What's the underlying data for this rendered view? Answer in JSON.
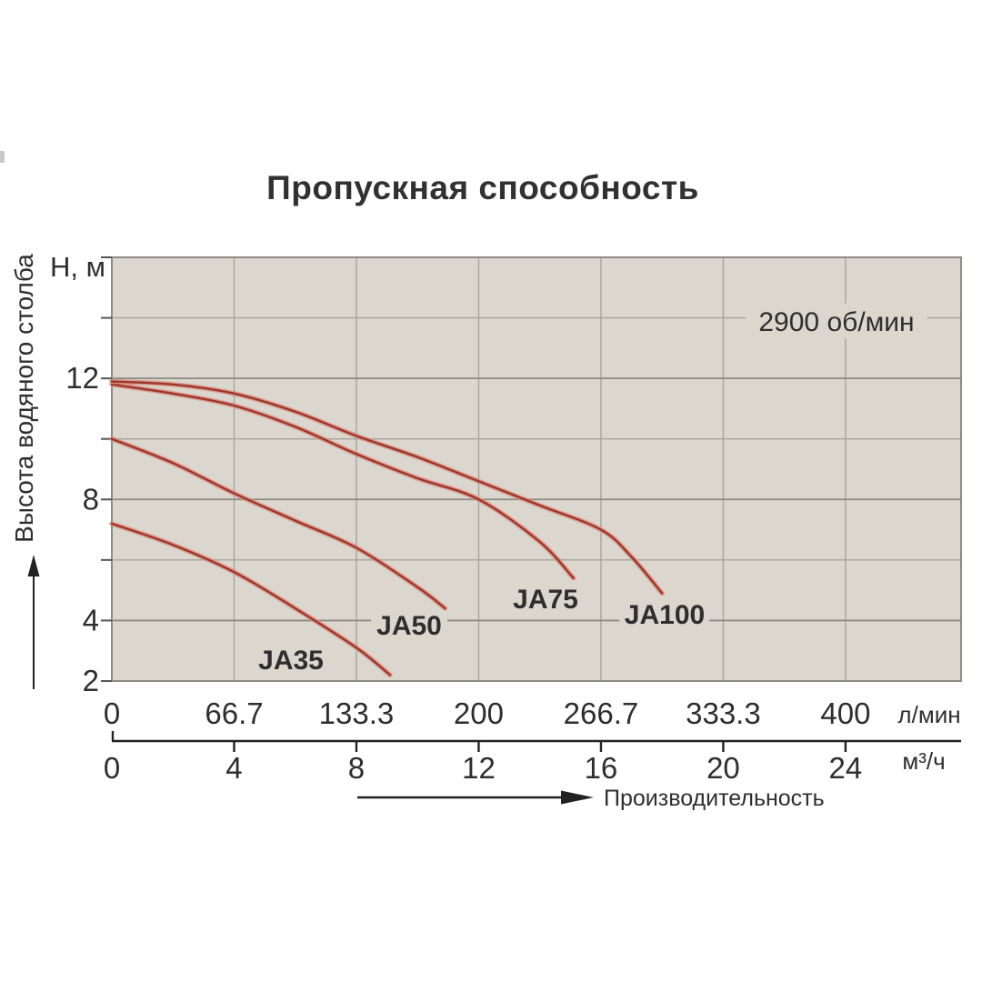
{
  "chart_data": {
    "type": "line",
    "title": "Пропускная способность",
    "annotation": "2900 об/мин",
    "x_title": "Производительность",
    "y_axis": {
      "label": "Н, м",
      "title": "Высота водяного столба",
      "range": [
        2,
        16
      ],
      "tick_labels": [
        "12",
        "8",
        "4",
        "2"
      ],
      "tick_values": [
        12,
        8,
        4,
        2
      ],
      "minor_tick_values": [
        2,
        4,
        6,
        8,
        10,
        12,
        14,
        16
      ]
    },
    "x_axes": [
      {
        "unit": "л/мин",
        "tick_labels": [
          "0",
          "66.7",
          "133.3",
          "200",
          "266.7",
          "333.3",
          "400"
        ]
      },
      {
        "unit": "м³/ч",
        "tick_labels": [
          "0",
          "4",
          "8",
          "12",
          "16",
          "20",
          "24"
        ]
      }
    ],
    "tick_positions_m3h": [
      0,
      4,
      8,
      12,
      16,
      20,
      24
    ],
    "x_range_m3h": [
      0,
      27.78
    ],
    "grid": {
      "v_m3h": [
        4,
        8,
        12,
        16,
        20,
        24
      ],
      "h_major": [
        4,
        8,
        12
      ],
      "h_minor": [
        6,
        10,
        14
      ]
    },
    "series": [
      {
        "name": "JA35",
        "points_m3h_H": [
          [
            0,
            7.2
          ],
          [
            2,
            6.5
          ],
          [
            4,
            5.6
          ],
          [
            6,
            4.4
          ],
          [
            8,
            3.1
          ],
          [
            9.1,
            2.2
          ]
        ]
      },
      {
        "name": "JA50",
        "points_m3h_H": [
          [
            0,
            10.0
          ],
          [
            2,
            9.2
          ],
          [
            4,
            8.2
          ],
          [
            6,
            7.3
          ],
          [
            8,
            6.4
          ],
          [
            10,
            5.1
          ],
          [
            10.9,
            4.4
          ]
        ]
      },
      {
        "name": "JA75",
        "points_m3h_H": [
          [
            0,
            11.8
          ],
          [
            2,
            11.5
          ],
          [
            4,
            11.1
          ],
          [
            6,
            10.4
          ],
          [
            8,
            9.5
          ],
          [
            10,
            8.7
          ],
          [
            12,
            8.0
          ],
          [
            14,
            6.6
          ],
          [
            15.1,
            5.4
          ]
        ]
      },
      {
        "name": "JA100",
        "points_m3h_H": [
          [
            0,
            11.9
          ],
          [
            2,
            11.8
          ],
          [
            4,
            11.5
          ],
          [
            6,
            10.9
          ],
          [
            8,
            10.1
          ],
          [
            10,
            9.4
          ],
          [
            12,
            8.6
          ],
          [
            14,
            7.8
          ],
          [
            16,
            7.0
          ],
          [
            17,
            6.1
          ],
          [
            18,
            4.9
          ]
        ]
      }
    ],
    "colors": {
      "plot_bg": "#dbd7ce",
      "grid_minor": "#a7a49b",
      "grid_major": "#8d8b82",
      "curve_core": "#9d372e",
      "curve_halo": "#d98a7a",
      "axis_ink": "#222222"
    }
  }
}
